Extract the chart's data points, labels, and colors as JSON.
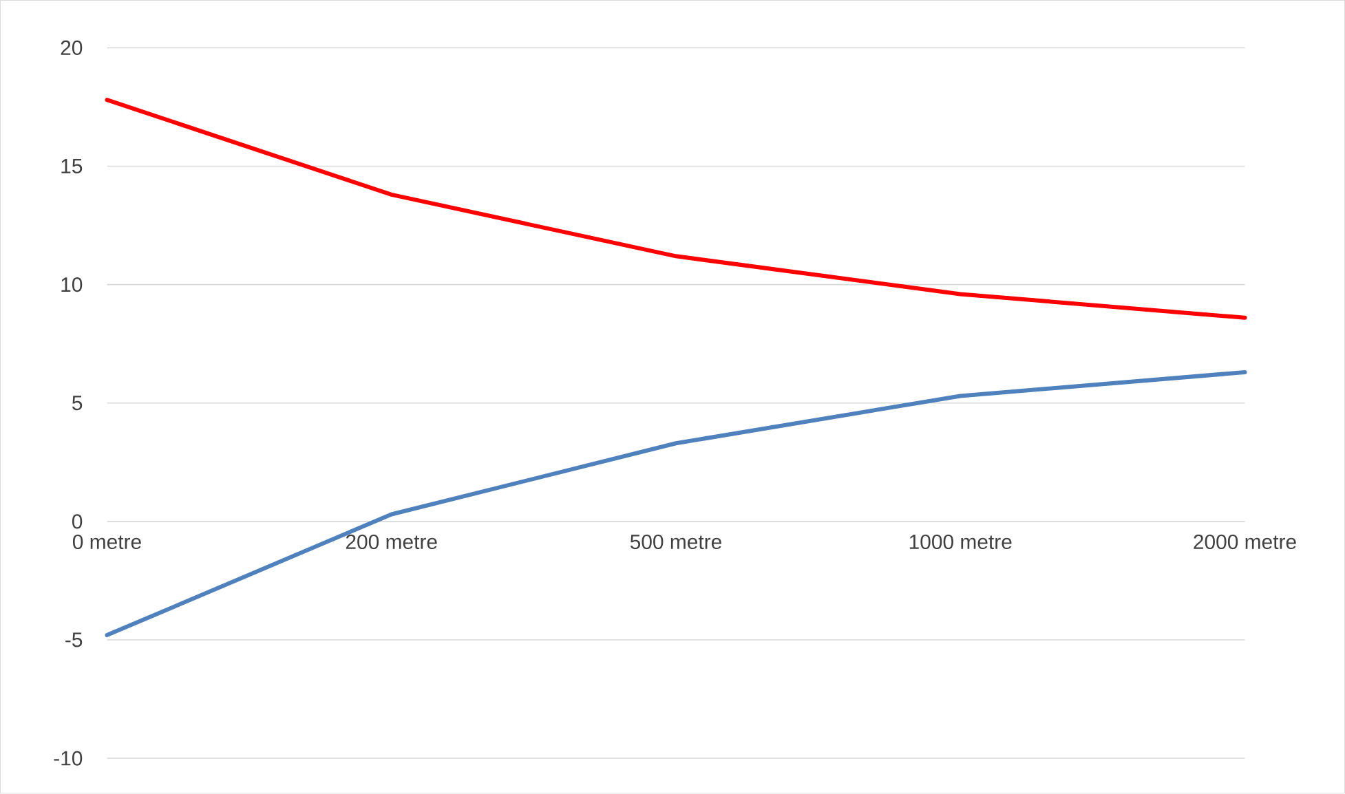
{
  "chart_data": {
    "type": "line",
    "categories": [
      "0 metre",
      "200 metre",
      "500 metre",
      "1000 metre",
      "2000 metre"
    ],
    "series": [
      {
        "color": "#ff0000",
        "values": [
          17.8,
          13.8,
          11.2,
          9.6,
          8.6
        ]
      },
      {
        "color": "#4f81bd",
        "values": [
          -4.8,
          0.3,
          3.3,
          5.3,
          6.3
        ]
      }
    ],
    "ylim": [
      -10,
      20
    ],
    "yticks": [
      -10,
      -5,
      0,
      5,
      10,
      15,
      20
    ],
    "grid": "y",
    "marker": "none",
    "line_style": "solid"
  }
}
